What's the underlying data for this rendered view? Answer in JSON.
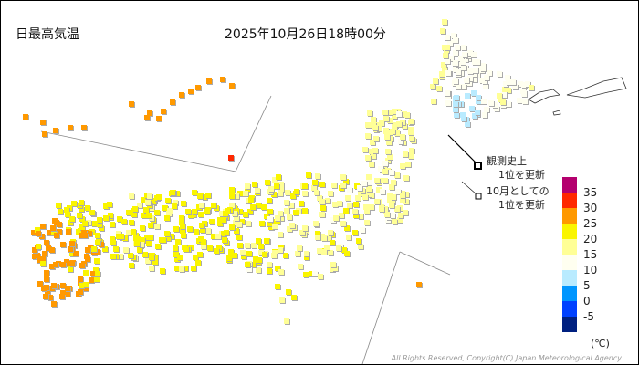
{
  "header": {
    "title": "日最高気温",
    "datetime": "2025年10月26日18時00分"
  },
  "legend": {
    "record_all_time": [
      "観測史上",
      "1位を更新"
    ],
    "record_month": [
      "10月としての",
      "1位を更新"
    ],
    "unit": "(℃)",
    "scale_labels": [
      "35",
      "30",
      "25",
      "20",
      "15",
      "10",
      "5",
      "0",
      "-5"
    ],
    "colors": [
      {
        "range": "35以上",
        "hex": "#b4006e"
      },
      {
        "range": "30-35",
        "hex": "#ff2800"
      },
      {
        "range": "25-30",
        "hex": "#ff9900"
      },
      {
        "range": "20-25",
        "hex": "#faf500"
      },
      {
        "range": "15-20",
        "hex": "#ffff96"
      },
      {
        "range": "10-15",
        "hex": "#fffff0"
      },
      {
        "range": "5-10",
        "hex": "#b9ebff"
      },
      {
        "range": "0-5",
        "hex": "#0096ff"
      },
      {
        "range": "-5-0",
        "hex": "#0041ff"
      },
      {
        "range": "-5未満",
        "hex": "#002080"
      }
    ]
  },
  "footer": {
    "copyright": "All Rights Reserved, Copyright(C) Japan Meteorological Agency"
  }
}
